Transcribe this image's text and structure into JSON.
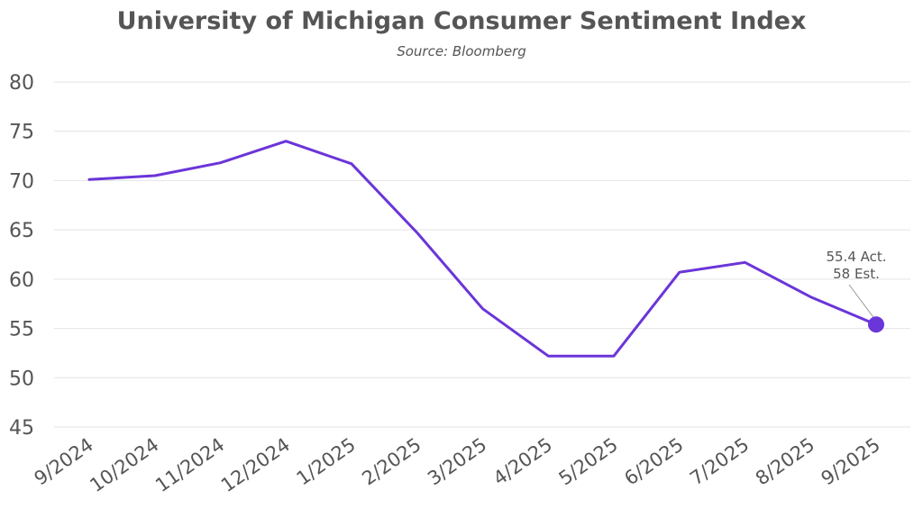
{
  "chart_data": {
    "type": "line",
    "title": "University of Michigan Consumer Sentiment Index",
    "subtitle": "Source: Bloomberg",
    "xlabel": "",
    "ylabel": "",
    "categories": [
      "9/2024",
      "10/2024",
      "11/2024",
      "12/2024",
      "1/2025",
      "2/2025",
      "3/2025",
      "4/2025",
      "5/2025",
      "6/2025",
      "7/2025",
      "8/2025",
      "9/2025"
    ],
    "series": [
      {
        "values": [
          70.1,
          70.5,
          71.8,
          74.0,
          71.7,
          64.7,
          57.0,
          52.2,
          52.2,
          60.7,
          61.7,
          58.2,
          55.4
        ]
      }
    ],
    "ylim": [
      45,
      80
    ],
    "yticks": [
      45,
      50,
      55,
      60,
      65,
      70,
      75,
      80
    ],
    "grid": true,
    "colors": {
      "line": "#6a35d9",
      "grid": "#e3e3e3",
      "text": "#555555"
    },
    "annotation": {
      "index": 12,
      "line1": "55.4 Act.",
      "line2": "58 Est."
    }
  }
}
